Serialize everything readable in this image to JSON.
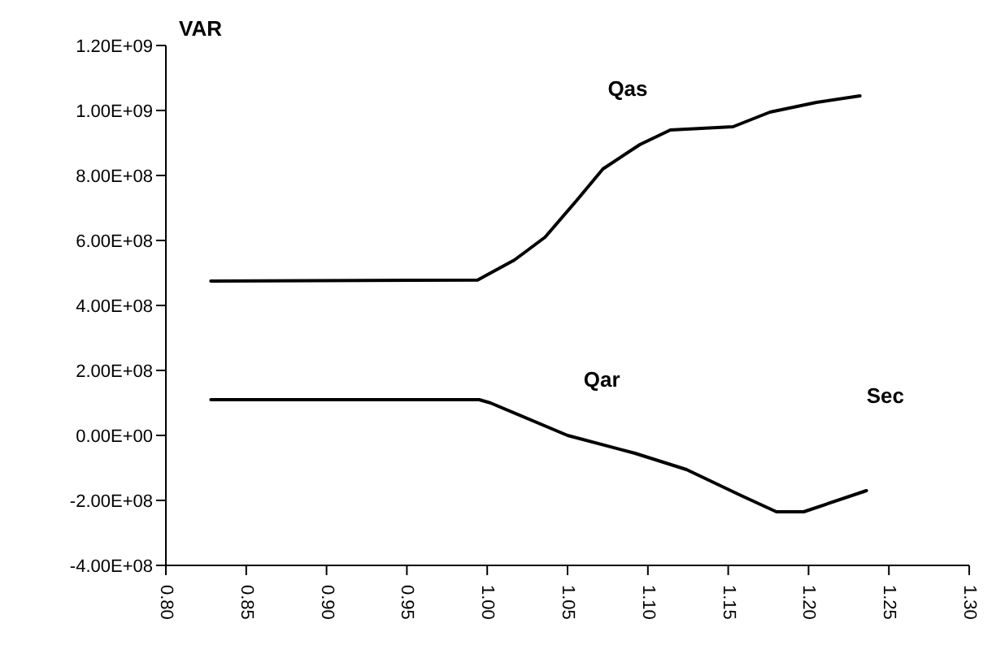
{
  "chart_data": {
    "type": "line",
    "xlabel": "Sec",
    "ylabel": "VAR",
    "xlim": [
      0.8,
      1.3
    ],
    "xticks": [
      {
        "value": 0.8,
        "label": "0.80"
      },
      {
        "value": 0.85,
        "label": "0.85"
      },
      {
        "value": 0.9,
        "label": "0.90"
      },
      {
        "value": 0.95,
        "label": "0.95"
      },
      {
        "value": 1.0,
        "label": "1.00"
      },
      {
        "value": 1.05,
        "label": "1.05"
      },
      {
        "value": 1.1,
        "label": "1.10"
      },
      {
        "value": 1.15,
        "label": "1.15"
      },
      {
        "value": 1.2,
        "label": "1.20"
      },
      {
        "value": 1.25,
        "label": "1.25"
      },
      {
        "value": 1.3,
        "label": "1.30"
      }
    ],
    "ylim": [
      -400000000,
      1200000000
    ],
    "yticks": [
      {
        "value": -400000000,
        "label": "-4.00E+08"
      },
      {
        "value": -200000000,
        "label": "-2.00E+08"
      },
      {
        "value": 0,
        "label": "0.00E+00"
      },
      {
        "value": 200000000,
        "label": "2.00E+08"
      },
      {
        "value": 400000000,
        "label": "4.00E+08"
      },
      {
        "value": 600000000,
        "label": "6.00E+08"
      },
      {
        "value": 800000000,
        "label": "8.00E+08"
      },
      {
        "value": 1000000000,
        "label": "1.00E+09"
      },
      {
        "value": 1200000000,
        "label": "1.20E+09"
      }
    ],
    "marker": "none",
    "line_style": "solid",
    "series": [
      {
        "name": "Qas",
        "color": "#000000",
        "x": [
          0.828,
          0.994,
          1.017,
          1.036,
          1.056,
          1.072,
          1.095,
          1.114,
          1.153,
          1.176,
          1.205,
          1.232
        ],
        "values": [
          475000000,
          478000000,
          540000000,
          610000000,
          725000000,
          820000000,
          895000000,
          940000000,
          950000000,
          995000000,
          1025000000,
          1045000000
        ]
      },
      {
        "name": "Qar",
        "color": "#000000",
        "x": [
          0.828,
          0.995,
          1.002,
          1.05,
          1.092,
          1.124,
          1.158,
          1.18,
          1.197,
          1.236
        ],
        "values": [
          110000000,
          110000000,
          100000000,
          0,
          -55000000,
          -105000000,
          -185000000,
          -235000000,
          -235000000,
          -170000000
        ]
      }
    ]
  }
}
